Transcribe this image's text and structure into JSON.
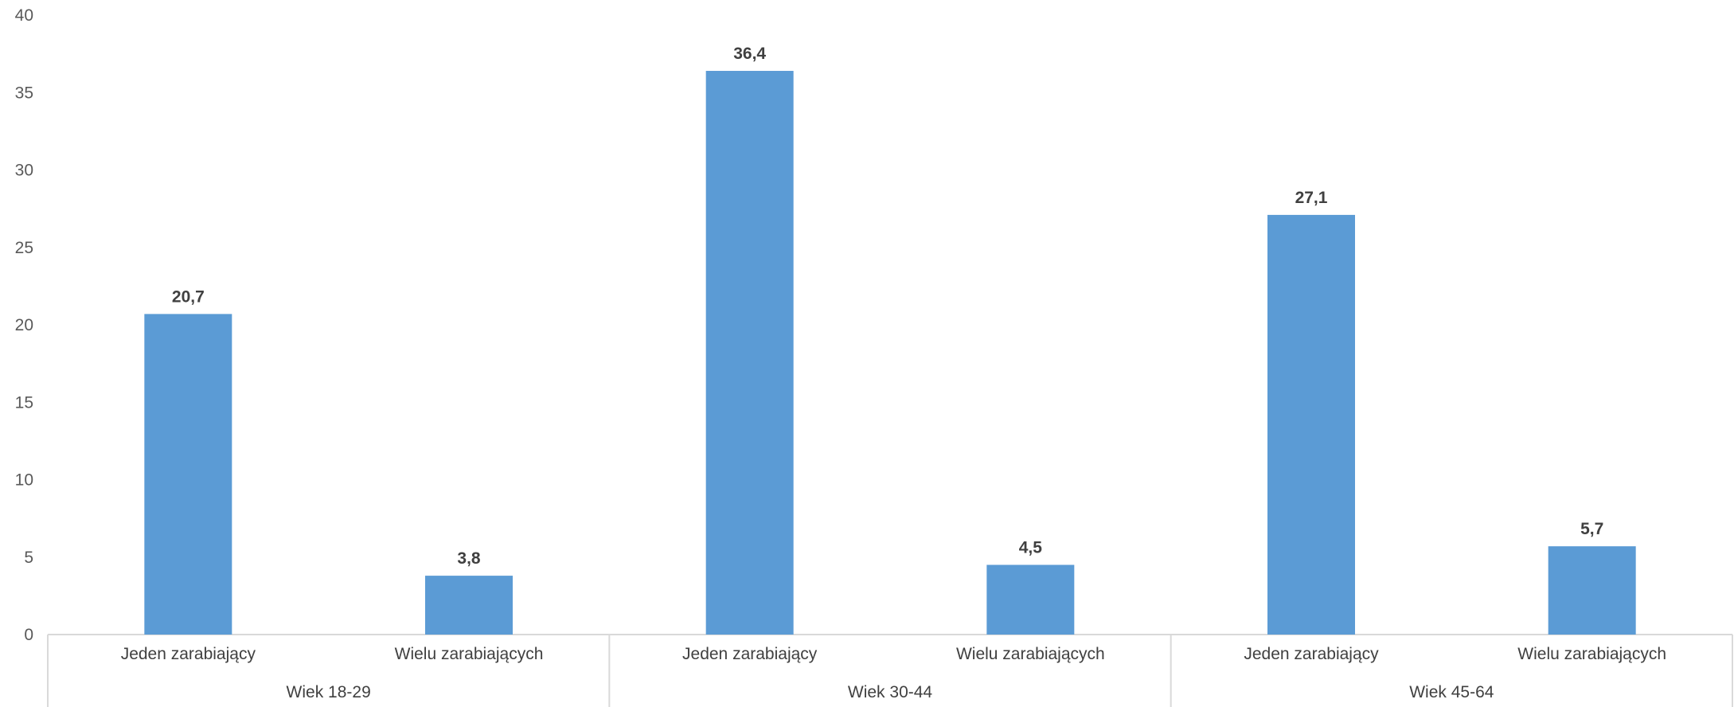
{
  "chart_data": {
    "type": "bar",
    "title": "",
    "xlabel": "",
    "ylabel": "",
    "ylim": [
      0,
      40
    ],
    "yticks": [
      0,
      5,
      10,
      15,
      20,
      25,
      30,
      35,
      40
    ],
    "grid": false,
    "legend": "none",
    "groups": [
      {
        "label": "Wiek 18-29",
        "categories": [
          "Jeden zarabiający",
          "Wielu zarabiających"
        ],
        "values": [
          20.7,
          3.8
        ],
        "value_labels": [
          "20,7",
          "3,8"
        ]
      },
      {
        "label": "Wiek 30-44",
        "categories": [
          "Jeden zarabiający",
          "Wielu zarabiających"
        ],
        "values": [
          36.4,
          4.5
        ],
        "value_labels": [
          "36,4",
          "4,5"
        ]
      },
      {
        "label": "Wiek 45-64",
        "categories": [
          "Jeden zarabiający",
          "Wielu zarabiających"
        ],
        "values": [
          27.1,
          5.7
        ],
        "value_labels": [
          "27,1",
          "5,7"
        ]
      }
    ],
    "colors": {
      "bar": "#5B9BD5",
      "axis": "#D9D9D9",
      "text": "#404040",
      "tick_text": "#595959"
    }
  }
}
